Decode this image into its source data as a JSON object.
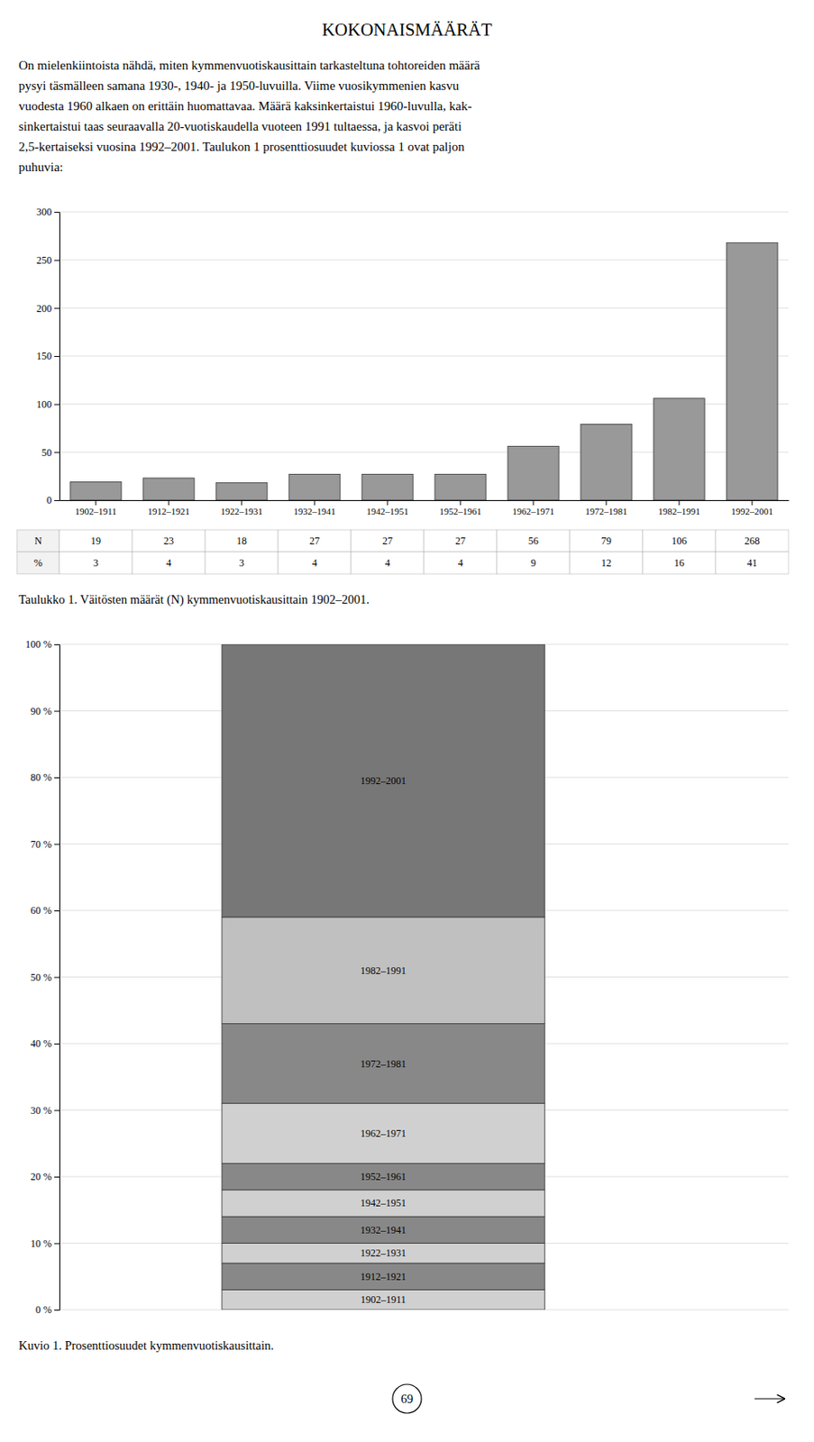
{
  "title": "KOKONAISMÄÄRÄT",
  "paragraph_lines": [
    "On mielenkiintoista nähdä, miten kymmenvuotiskausittain tarkasteltuna tohtoreiden määrä",
    "pysyi täsmälleen samana 1930-, 1940- ja 1950-luvuilla. Viime vuosikymmenien kasvu",
    "vuodesta 1960 alkaen on erittäin huomattavaa. Määrä kaksinkertaistui 1960-luvulla, kak-",
    "sinkertaistui taas seuraavalla 20-vuotiskaudella vuoteen 1991 tultaessa, ja kasvoi peräti",
    "2,5-kertaiseksi vuosina 1992–2001. Taulukon 1 prosenttiosuudet kuviossa 1 ovat paljon",
    "puhuvia:"
  ],
  "page_number": "69",
  "chart_data": [
    {
      "type": "bar",
      "categories": [
        "1902–1911",
        "1912–1921",
        "1922–1931",
        "1932–1941",
        "1942–1951",
        "1952–1961",
        "1962–1971",
        "1972–1981",
        "1982–1991",
        "1992–2001"
      ],
      "values": [
        19,
        23,
        18,
        27,
        27,
        27,
        56,
        79,
        106,
        268
      ],
      "color": "#999999",
      "ylim": [
        0,
        300
      ],
      "yticks": [
        0,
        50,
        100,
        150,
        200,
        250,
        300
      ],
      "grid": true,
      "table_row_labels": [
        "N",
        "%"
      ],
      "caption": "Taulukko 1. Väitösten määrät (N) kymmenvuotiskausittain 1902–2001."
    },
    {
      "type": "bar",
      "stacked": true,
      "categories": [
        "1902–1911",
        "1912–1921",
        "1922–1931",
        "1932–1941",
        "1942–1951",
        "1952–1961",
        "1962–1971",
        "1972–1981",
        "1982–1991",
        "1992–2001"
      ],
      "values": [
        3,
        4,
        3,
        4,
        4,
        4,
        9,
        12,
        16,
        41
      ],
      "colors": [
        "#d0d0d0",
        "#888888",
        "#d0d0d0",
        "#888888",
        "#d0d0d0",
        "#888888",
        "#d0d0d0",
        "#888888",
        "#c0c0c0",
        "#777777"
      ],
      "ylim": [
        0,
        100
      ],
      "yticks": [
        {
          "value": 0,
          "label": "0 %"
        },
        {
          "value": 10,
          "label": "10 %"
        },
        {
          "value": 20,
          "label": "20 %"
        },
        {
          "value": 30,
          "label": "30 %"
        },
        {
          "value": 40,
          "label": "40 %"
        },
        {
          "value": 50,
          "label": "50 %"
        },
        {
          "value": 60,
          "label": "60 %"
        },
        {
          "value": 70,
          "label": "70 %"
        },
        {
          "value": 80,
          "label": "80 %"
        },
        {
          "value": 90,
          "label": "90 %"
        },
        {
          "value": 100,
          "label": "100 %"
        }
      ],
      "grid": true,
      "tick_labels": "y",
      "caption": "Kuvio 1. Prosenttiosuudet kymmenvuotiskausittain."
    }
  ]
}
